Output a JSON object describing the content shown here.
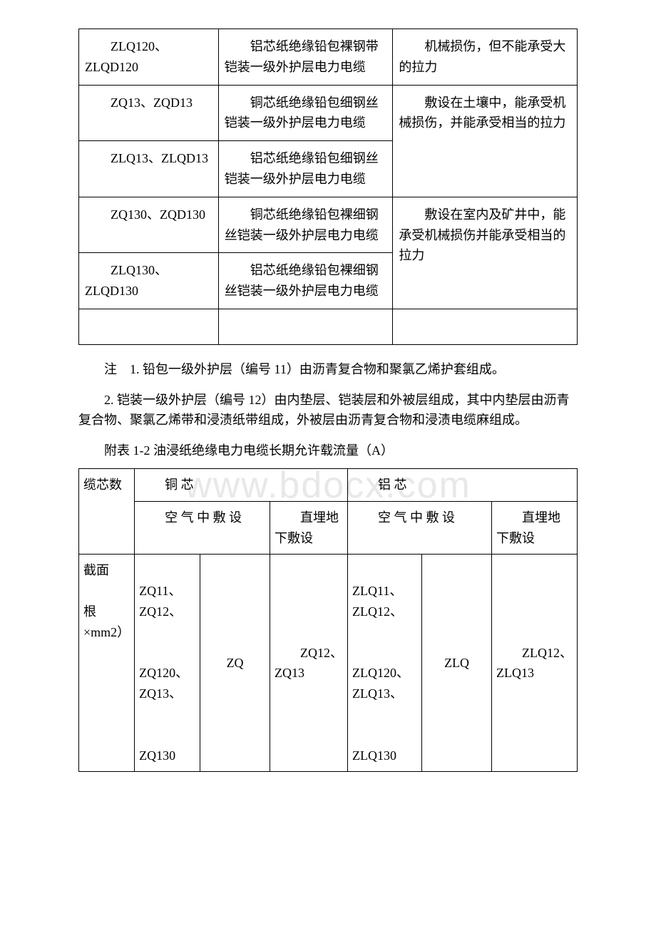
{
  "watermark": "www.bdocx.com",
  "table1": {
    "rows": [
      {
        "code": "ZLQ120、ZLQD120",
        "name": "铝芯纸绝缘铅包裸钢带铠装一级外护层电力电缆",
        "usage": "机械损伤，但不能承受大的拉力"
      },
      {
        "code": "ZQ13、ZQD13",
        "name": "铜芯纸绝缘铅包细钢丝铠装一级外护层电力电缆",
        "usage_merged": "敷设在土壤中，能承受机械损伤，并能承受相当的拉力"
      },
      {
        "code": "ZLQ13、ZLQD13",
        "name": "铝芯纸绝缘铅包细钢丝铠装一级外护层电力电缆"
      },
      {
        "code": "ZQ130、ZQD130",
        "name": "铜芯纸绝缘铅包裸细钢丝铠装一级外护层电力电缆",
        "usage_merged": "敷设在室内及矿井中，能承受机械损伤并能承受相当的拉力"
      },
      {
        "code": "ZLQ130、ZLQD130",
        "name": "铝芯纸绝缘铅包裸细钢丝铠装一级外护层电力电缆"
      }
    ]
  },
  "note1": "注　1. 铅包一级外护层（编号 11）由沥青复合物和聚氯乙烯护套组成。",
  "note2": "2. 铠装一级外护层（编号 12）由内垫层、铠装层和外被层组成，其中内垫层由沥青复合物、聚氯乙烯带和浸渍纸带组成，外被层由沥青复合物和浸渍电缆麻组成。",
  "caption": "附表 1-2 油浸纸绝缘电力电缆长期允许载流量（A）",
  "table2": {
    "header": {
      "col0": "缆芯数",
      "copper": "铜 芯",
      "aluminum": "铝 芯",
      "air": "空 气 中 敷 设",
      "buried": "直埋地下敷设"
    },
    "row2": {
      "col0_a": "截面",
      "col0_b": "根×mm2）",
      "copper_air_types": "ZQ11、ZQ12、\n\nZQ120、ZQ13、\n\nZQ130",
      "copper_air_zq": "ZQ",
      "copper_buried": "ZQ12、ZQ13",
      "alum_air_types": "ZLQ11、ZLQ12、\n\nZLQ120、ZLQ13、\n\nZLQ130",
      "alum_air_zlq": "ZLQ",
      "alum_buried": "ZLQ12、ZLQ13"
    }
  }
}
